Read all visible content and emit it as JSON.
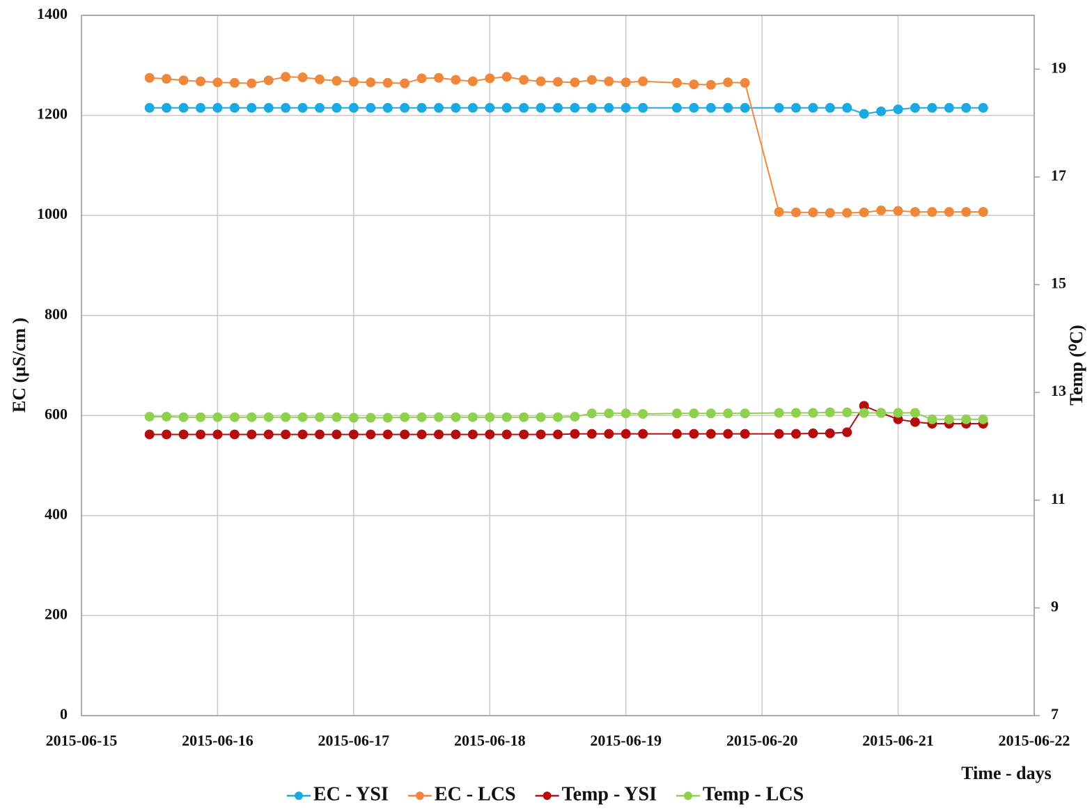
{
  "chart_data": {
    "type": "line",
    "xlabel": "Time - days",
    "ylabel": "EC (µS/cm )",
    "y2label": "Temp (⁰C)",
    "x": [
      "2015-06-15 12:00",
      "2015-06-15 15:00",
      "2015-06-15 18:00",
      "2015-06-15 21:00",
      "2015-06-16 00:00",
      "2015-06-16 03:00",
      "2015-06-16 06:00",
      "2015-06-16 09:00",
      "2015-06-16 12:00",
      "2015-06-16 15:00",
      "2015-06-16 18:00",
      "2015-06-16 21:00",
      "2015-06-17 00:00",
      "2015-06-17 03:00",
      "2015-06-17 06:00",
      "2015-06-17 09:00",
      "2015-06-17 12:00",
      "2015-06-17 15:00",
      "2015-06-17 18:00",
      "2015-06-17 21:00",
      "2015-06-18 00:00",
      "2015-06-18 03:00",
      "2015-06-18 06:00",
      "2015-06-18 09:00",
      "2015-06-18 12:00",
      "2015-06-18 15:00",
      "2015-06-18 18:00",
      "2015-06-18 21:00",
      "2015-06-19 00:00",
      "2015-06-19 03:00",
      "2015-06-19 09:00",
      "2015-06-19 12:00",
      "2015-06-19 15:00",
      "2015-06-19 18:00",
      "2015-06-19 21:00",
      "2015-06-20 03:00",
      "2015-06-20 06:00",
      "2015-06-20 09:00",
      "2015-06-20 12:00",
      "2015-06-20 15:00",
      "2015-06-20 18:00",
      "2015-06-20 21:00",
      "2015-06-21 00:00",
      "2015-06-21 03:00",
      "2015-06-21 06:00",
      "2015-06-21 09:00",
      "2015-06-21 12:00",
      "2015-06-21 15:00"
    ],
    "xlim": [
      "2015-06-15",
      "2015-06-22"
    ],
    "xticks": [
      "2015-06-15",
      "2015-06-16",
      "2015-06-17",
      "2015-06-18",
      "2015-06-19",
      "2015-06-20",
      "2015-06-21",
      "2015-06-22"
    ],
    "ylim": [
      0,
      1400
    ],
    "yticks": [
      0,
      200,
      400,
      600,
      800,
      1000,
      1200,
      1400
    ],
    "y2lim": [
      7,
      20
    ],
    "y2ticks": [
      7,
      9,
      11,
      13,
      15,
      17,
      19
    ],
    "grid": true,
    "legend": "bottom",
    "series": [
      {
        "name": "EC - YSI",
        "color": "#1ba9e1",
        "values": [
          1215,
          1215,
          1215,
          1215,
          1215,
          1215,
          1215,
          1215,
          1215,
          1215,
          1215,
          1215,
          1215,
          1215,
          1215,
          1215,
          1215,
          1215,
          1215,
          1215,
          1215,
          1215,
          1215,
          1215,
          1215,
          1215,
          1215,
          1215,
          1215,
          1215,
          1215,
          1215,
          1215,
          1215,
          1215,
          1215,
          1215,
          1215,
          1215,
          1215,
          1203,
          1208,
          1212,
          1215,
          1215,
          1215,
          1215,
          1215
        ]
      },
      {
        "name": "EC - LCS",
        "color": "#f0883c",
        "values": [
          1275,
          1273,
          1270,
          1268,
          1266,
          1265,
          1264,
          1270,
          1277,
          1276,
          1272,
          1269,
          1267,
          1266,
          1265,
          1264,
          1274,
          1275,
          1271,
          1268,
          1274,
          1277,
          1271,
          1268,
          1267,
          1266,
          1271,
          1268,
          1266,
          1268,
          1265,
          1262,
          1261,
          1266,
          1265,
          1007,
          1006,
          1006,
          1005,
          1005,
          1006,
          1010,
          1009,
          1007,
          1007,
          1007,
          1007,
          1007
        ]
      },
      {
        "name": "Temp - YSI",
        "color": "#b50d0d",
        "axis": "y2",
        "values": [
          12.22,
          12.22,
          12.22,
          12.22,
          12.22,
          12.22,
          12.22,
          12.22,
          12.22,
          12.22,
          12.22,
          12.22,
          12.22,
          12.22,
          12.22,
          12.22,
          12.22,
          12.22,
          12.22,
          12.22,
          12.22,
          12.22,
          12.22,
          12.22,
          12.22,
          12.23,
          12.23,
          12.23,
          12.23,
          12.23,
          12.23,
          12.23,
          12.23,
          12.23,
          12.23,
          12.23,
          12.23,
          12.24,
          12.24,
          12.26,
          12.75,
          12.62,
          12.5,
          12.45,
          12.42,
          12.42,
          12.42,
          12.42
        ]
      },
      {
        "name": "Temp - LCS",
        "color": "#8fd14f",
        "axis": "y2",
        "values": [
          12.55,
          12.55,
          12.54,
          12.54,
          12.54,
          12.54,
          12.54,
          12.54,
          12.54,
          12.54,
          12.54,
          12.54,
          12.53,
          12.53,
          12.53,
          12.54,
          12.54,
          12.54,
          12.54,
          12.54,
          12.54,
          12.54,
          12.54,
          12.54,
          12.54,
          12.55,
          12.61,
          12.61,
          12.61,
          12.6,
          12.61,
          12.61,
          12.61,
          12.61,
          12.61,
          12.62,
          12.62,
          12.62,
          12.63,
          12.63,
          12.62,
          12.62,
          12.62,
          12.62,
          12.5,
          12.5,
          12.5,
          12.5
        ]
      }
    ]
  }
}
